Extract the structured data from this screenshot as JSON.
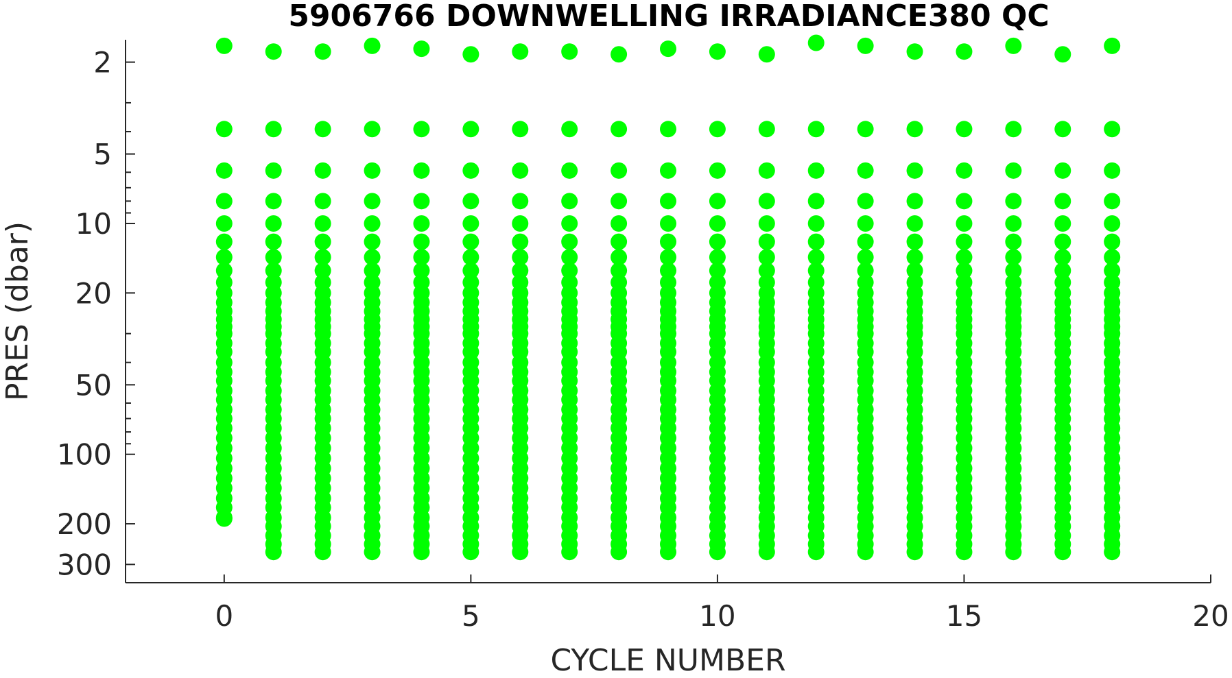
{
  "chart_data": {
    "type": "scatter",
    "title": "5906766  DOWNWELLING IRRADIANCE380 QC",
    "xlabel": "CYCLE NUMBER",
    "ylabel": "PRES (dbar)",
    "xlim": [
      -2,
      20
    ],
    "ylim": [
      1.6,
      360
    ],
    "y_scale": "log",
    "y_reversed": true,
    "grid": false,
    "x_ticks": [
      0,
      5,
      10,
      15,
      20
    ],
    "y_ticks": [
      2,
      5,
      10,
      20,
      50,
      100,
      200,
      300
    ],
    "x_tick_labels": [
      "0",
      "5",
      "10",
      "15",
      "20"
    ],
    "y_tick_labels": [
      "2",
      "5",
      "10",
      "20",
      "50",
      "100",
      "200",
      "300"
    ],
    "marker_color": "#00ff00",
    "series": [
      {
        "cycles": [
          0,
          1,
          2,
          3,
          4,
          5,
          6,
          7,
          8,
          9,
          10,
          11,
          12,
          13,
          14,
          15,
          16,
          17,
          18
        ],
        "top_pressures": [
          1.7,
          1.8,
          1.8,
          1.7,
          1.75,
          1.85,
          1.8,
          1.8,
          1.85,
          1.75,
          1.8,
          1.85,
          1.65,
          1.7,
          1.8,
          1.8,
          1.7,
          1.85,
          1.7
        ],
        "levels": [
          3.9,
          5.9,
          8.0,
          10.0,
          12.0,
          14.0,
          16.0,
          18.0,
          20.0,
          22.0,
          24.0,
          26.0,
          28.0,
          30.0,
          33.0,
          36.0,
          40.0,
          44.0,
          48.0,
          53.0,
          58.0,
          64.0,
          70.0,
          77.0,
          85.0,
          94.0,
          104.0,
          115.0,
          127.0,
          140.0,
          155.0,
          170.0,
          188.0,
          205.0,
          225.0,
          245.0,
          265.0
        ],
        "max_pressures": [
          190,
          265,
          265,
          265,
          265,
          265,
          265,
          265,
          265,
          265,
          265,
          265,
          265,
          265,
          265,
          265,
          265,
          265,
          265
        ]
      }
    ]
  }
}
